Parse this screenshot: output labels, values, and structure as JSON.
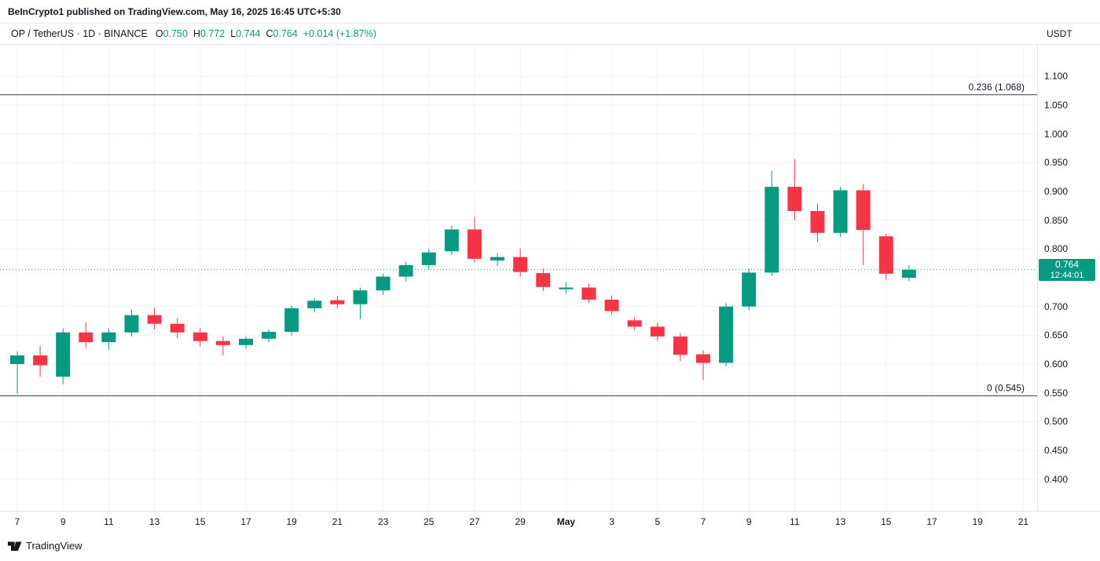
{
  "header": {
    "publish_line": "BeInCrypto1 published on TradingView.com, May 16, 2025 16:45 UTC+5:30"
  },
  "toolbar": {
    "symbol_line": "OP / TetherUS · 1D · BINANCE",
    "ohlc": [
      {
        "label": "O",
        "value": "0.750"
      },
      {
        "label": "H",
        "value": "0.772"
      },
      {
        "label": "L",
        "value": "0.744"
      },
      {
        "label": "C",
        "value": "0.764"
      }
    ],
    "change": "+0.014 (+1.87%)",
    "currency_label": "USDT"
  },
  "footer": {
    "brand": "TradingView"
  },
  "chart_data": {
    "type": "candlestick",
    "title": "OP / TetherUS 1D BINANCE",
    "symbol": "OP/USDT",
    "interval": "1D",
    "exchange": "BINANCE",
    "price_axis": {
      "min": 0.345,
      "max": 1.155,
      "ticks": [
        "1.100",
        "1.050",
        "1.000",
        "0.950",
        "0.900",
        "0.850",
        "0.800",
        "0.700",
        "0.650",
        "0.600",
        "0.550",
        "0.500",
        "0.450",
        "0.400"
      ]
    },
    "x_labels": [
      {
        "slot": 0,
        "label": "7"
      },
      {
        "slot": 2,
        "label": "9"
      },
      {
        "slot": 4,
        "label": "11"
      },
      {
        "slot": 6,
        "label": "13"
      },
      {
        "slot": 8,
        "label": "15"
      },
      {
        "slot": 10,
        "label": "17"
      },
      {
        "slot": 12,
        "label": "19"
      },
      {
        "slot": 14,
        "label": "21"
      },
      {
        "slot": 16,
        "label": "23"
      },
      {
        "slot": 18,
        "label": "25"
      },
      {
        "slot": 20,
        "label": "27"
      },
      {
        "slot": 22,
        "label": "29"
      },
      {
        "slot": 24,
        "label": "May",
        "bold": true
      },
      {
        "slot": 26,
        "label": "3"
      },
      {
        "slot": 28,
        "label": "5"
      },
      {
        "slot": 30,
        "label": "7"
      },
      {
        "slot": 32,
        "label": "9"
      },
      {
        "slot": 34,
        "label": "11"
      },
      {
        "slot": 36,
        "label": "13"
      },
      {
        "slot": 38,
        "label": "15"
      },
      {
        "slot": 40,
        "label": "17"
      },
      {
        "slot": 42,
        "label": "19"
      },
      {
        "slot": 44,
        "label": "21"
      }
    ],
    "candles": [
      {
        "d": "Apr 7",
        "o": 0.6,
        "h": 0.622,
        "l": 0.548,
        "c": 0.615
      },
      {
        "d": "Apr 8",
        "o": 0.615,
        "h": 0.632,
        "l": 0.578,
        "c": 0.598
      },
      {
        "d": "Apr 9",
        "o": 0.578,
        "h": 0.662,
        "l": 0.565,
        "c": 0.655
      },
      {
        "d": "Apr 10",
        "o": 0.655,
        "h": 0.672,
        "l": 0.628,
        "c": 0.638
      },
      {
        "d": "Apr 11",
        "o": 0.638,
        "h": 0.662,
        "l": 0.625,
        "c": 0.655
      },
      {
        "d": "Apr 12",
        "o": 0.655,
        "h": 0.695,
        "l": 0.648,
        "c": 0.685
      },
      {
        "d": "Apr 13",
        "o": 0.685,
        "h": 0.698,
        "l": 0.66,
        "c": 0.67
      },
      {
        "d": "Apr 14",
        "o": 0.67,
        "h": 0.68,
        "l": 0.645,
        "c": 0.655
      },
      {
        "d": "Apr 15",
        "o": 0.655,
        "h": 0.663,
        "l": 0.63,
        "c": 0.64
      },
      {
        "d": "Apr 16",
        "o": 0.64,
        "h": 0.648,
        "l": 0.615,
        "c": 0.633
      },
      {
        "d": "Apr 17",
        "o": 0.633,
        "h": 0.648,
        "l": 0.626,
        "c": 0.644
      },
      {
        "d": "Apr 18",
        "o": 0.644,
        "h": 0.66,
        "l": 0.638,
        "c": 0.656
      },
      {
        "d": "Apr 19",
        "o": 0.656,
        "h": 0.702,
        "l": 0.65,
        "c": 0.697
      },
      {
        "d": "Apr 20",
        "o": 0.697,
        "h": 0.715,
        "l": 0.69,
        "c": 0.71
      },
      {
        "d": "Apr 21",
        "o": 0.711,
        "h": 0.718,
        "l": 0.697,
        "c": 0.704
      },
      {
        "d": "Apr 22",
        "o": 0.704,
        "h": 0.733,
        "l": 0.678,
        "c": 0.728
      },
      {
        "d": "Apr 23",
        "o": 0.728,
        "h": 0.757,
        "l": 0.72,
        "c": 0.752
      },
      {
        "d": "Apr 24",
        "o": 0.752,
        "h": 0.778,
        "l": 0.744,
        "c": 0.772
      },
      {
        "d": "Apr 25",
        "o": 0.772,
        "h": 0.8,
        "l": 0.764,
        "c": 0.794
      },
      {
        "d": "Apr 26",
        "o": 0.796,
        "h": 0.841,
        "l": 0.79,
        "c": 0.834
      },
      {
        "d": "Apr 27",
        "o": 0.834,
        "h": 0.856,
        "l": 0.776,
        "c": 0.783
      },
      {
        "d": "Apr 28",
        "o": 0.78,
        "h": 0.793,
        "l": 0.77,
        "c": 0.786
      },
      {
        "d": "Apr 29",
        "o": 0.786,
        "h": 0.801,
        "l": 0.752,
        "c": 0.76
      },
      {
        "d": "Apr 30",
        "o": 0.758,
        "h": 0.766,
        "l": 0.727,
        "c": 0.734
      },
      {
        "d": "May 1",
        "o": 0.73,
        "h": 0.742,
        "l": 0.722,
        "c": 0.733
      },
      {
        "d": "May 2",
        "o": 0.733,
        "h": 0.74,
        "l": 0.706,
        "c": 0.712
      },
      {
        "d": "May 3",
        "o": 0.712,
        "h": 0.719,
        "l": 0.686,
        "c": 0.692
      },
      {
        "d": "May 4",
        "o": 0.676,
        "h": 0.682,
        "l": 0.659,
        "c": 0.665
      },
      {
        "d": "May 5",
        "o": 0.665,
        "h": 0.672,
        "l": 0.64,
        "c": 0.648
      },
      {
        "d": "May 6",
        "o": 0.648,
        "h": 0.654,
        "l": 0.605,
        "c": 0.616
      },
      {
        "d": "May 7",
        "o": 0.617,
        "h": 0.624,
        "l": 0.572,
        "c": 0.602
      },
      {
        "d": "May 8",
        "o": 0.602,
        "h": 0.706,
        "l": 0.596,
        "c": 0.7
      },
      {
        "d": "May 9",
        "o": 0.7,
        "h": 0.766,
        "l": 0.693,
        "c": 0.759
      },
      {
        "d": "May 10",
        "o": 0.759,
        "h": 0.936,
        "l": 0.753,
        "c": 0.908
      },
      {
        "d": "May 11",
        "o": 0.908,
        "h": 0.956,
        "l": 0.85,
        "c": 0.866
      },
      {
        "d": "May 12",
        "o": 0.866,
        "h": 0.879,
        "l": 0.812,
        "c": 0.828
      },
      {
        "d": "May 13",
        "o": 0.828,
        "h": 0.908,
        "l": 0.821,
        "c": 0.902
      },
      {
        "d": "May 14",
        "o": 0.902,
        "h": 0.913,
        "l": 0.772,
        "c": 0.833
      },
      {
        "d": "May 15",
        "o": 0.822,
        "h": 0.827,
        "l": 0.746,
        "c": 0.757
      },
      {
        "d": "May 16",
        "o": 0.75,
        "h": 0.772,
        "l": 0.744,
        "c": 0.764
      }
    ],
    "fib_levels": [
      {
        "label": "0.236 (1.068)",
        "price": 1.068
      },
      {
        "label": "0 (0.545)",
        "price": 0.545
      }
    ],
    "last_price": {
      "value": "0.764",
      "price": 0.764,
      "countdown": "12:44:01"
    },
    "colors": {
      "up": "#089981",
      "down": "#f23645",
      "grid": "#f0f3fa",
      "axis_text": "#131722",
      "fib_line": "#363a45"
    }
  }
}
